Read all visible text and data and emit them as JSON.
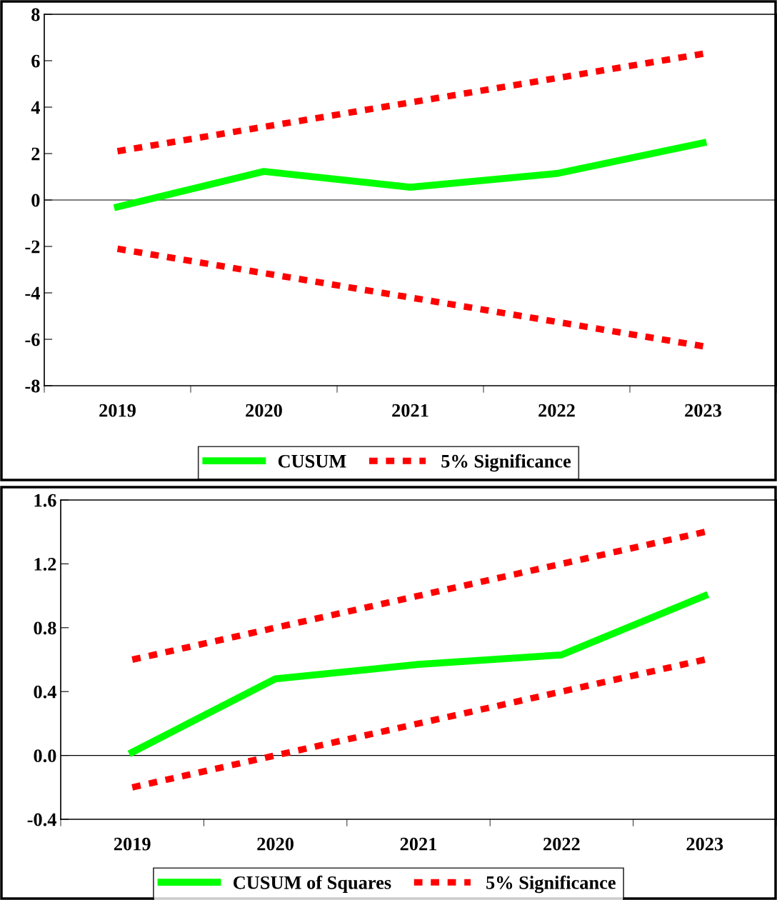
{
  "chart_data": [
    {
      "type": "line",
      "categories": [
        "2019",
        "2020",
        "2021",
        "2022",
        "2023"
      ],
      "ylim": [
        -8,
        8
      ],
      "yticks": [
        -8,
        -6,
        -4,
        -2,
        0,
        2,
        4,
        6,
        8
      ],
      "grid": false,
      "legend": "bottom",
      "marker": "none",
      "ref_lines": [
        {
          "axis": "y",
          "value": 0,
          "color": "#000000"
        }
      ],
      "series": [
        {
          "name": "CUSUM",
          "color": "#00ff00",
          "line_style": "solid",
          "values": [
            -0.3,
            1.23,
            0.55,
            1.14,
            2.46
          ]
        },
        {
          "name": "5% Significance",
          "color": "#ff0000",
          "line_style": "dotted",
          "values": [
            2.1,
            3.15,
            4.2,
            5.25,
            6.3
          ]
        },
        {
          "color": "#ff0000",
          "line_style": "dotted",
          "values": [
            -2.1,
            -3.15,
            -4.2,
            -5.25,
            -6.3
          ]
        }
      ]
    },
    {
      "type": "line",
      "categories": [
        "2019",
        "2020",
        "2021",
        "2022",
        "2023"
      ],
      "ylim": [
        -0.4,
        1.6
      ],
      "yticks": [
        {
          "value": -0.4,
          "label": "-0.4"
        },
        {
          "value": 0,
          "label": "0.0"
        },
        {
          "value": 0.4,
          "label": "0.4"
        },
        {
          "value": 0.8,
          "label": "0.8"
        },
        {
          "value": 1.2,
          "label": "1.2"
        },
        {
          "value": 1.6,
          "label": "1.6"
        }
      ],
      "grid": false,
      "legend": "bottom",
      "marker": "none",
      "ref_lines": [
        {
          "axis": "y",
          "value": 0,
          "color": "#000000"
        }
      ],
      "series": [
        {
          "name": "CUSUM of Squares",
          "color": "#00ff00",
          "line_style": "solid",
          "values": [
            0.02,
            0.48,
            0.57,
            0.63,
            1.0
          ]
        },
        {
          "name": "5% Significance",
          "color": "#ff0000",
          "line_style": "dotted",
          "values": [
            0.6,
            0.8,
            1.0,
            1.2,
            1.4
          ]
        },
        {
          "color": "#ff0000",
          "line_style": "dotted",
          "values": [
            -0.2,
            0.0,
            0.2,
            0.4,
            0.6
          ]
        }
      ]
    }
  ]
}
